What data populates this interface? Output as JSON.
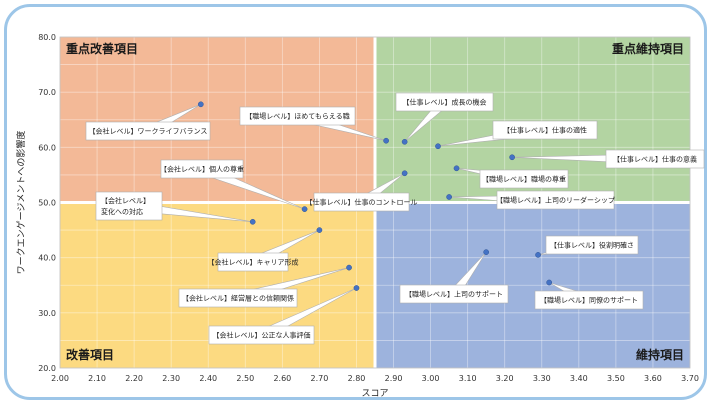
{
  "chart_data": {
    "type": "scatter",
    "xlabel": "スコア",
    "ylabel": "ワークエンゲージメントへの影響度",
    "xlim": [
      2.0,
      3.7
    ],
    "ylim": [
      20.0,
      80.0
    ],
    "x_ticks": [
      "2.00",
      "2.10",
      "2.20",
      "2.30",
      "2.40",
      "2.50",
      "2.60",
      "2.70",
      "2.80",
      "2.90",
      "3.00",
      "3.10",
      "3.20",
      "3.30",
      "3.40",
      "3.50",
      "3.60",
      "3.70"
    ],
    "y_ticks": [
      "20.0",
      "30.0",
      "40.0",
      "50.0",
      "60.0",
      "70.0",
      "80.0"
    ],
    "x_divider": 2.85,
    "y_divider": 50.0,
    "grid": true,
    "quadrants": [
      {
        "name": "重点改善項目",
        "position": "top-left",
        "color": "#f3b997"
      },
      {
        "name": "重点維持項目",
        "position": "top-right",
        "color": "#b3d4a2"
      },
      {
        "name": "改善項目",
        "position": "bottom-left",
        "color": "#fcda81"
      },
      {
        "name": "維持項目",
        "position": "bottom-right",
        "color": "#9db3dd"
      }
    ],
    "point_color": "#4472c4",
    "points": [
      {
        "label": "【会社レベル】ワークライフバランス",
        "x": 2.38,
        "y": 67.8
      },
      {
        "label": "【会社レベル】個人の尊重",
        "x": 2.66,
        "y": 48.8
      },
      {
        "label": "【会社レベル】変化への対応",
        "x": 2.52,
        "y": 46.5
      },
      {
        "label": "【会社レベル】キャリア形成",
        "x": 2.7,
        "y": 45.0
      },
      {
        "label": "【会社レベル】経営層との信頼関係",
        "x": 2.78,
        "y": 38.2
      },
      {
        "label": "【会社レベル】公正な人事評価",
        "x": 2.8,
        "y": 34.5
      },
      {
        "label": "【職場レベル】ほめてもらえる職",
        "x": 2.88,
        "y": 61.2
      },
      {
        "label": "【仕事レベル】成長の機会",
        "x": 2.93,
        "y": 61.0
      },
      {
        "label": "【仕事レベル】仕事の適性",
        "x": 3.02,
        "y": 60.2
      },
      {
        "label": "【仕事レベル】仕事のコントロール",
        "x": 2.93,
        "y": 55.3
      },
      {
        "label": "【職場レベル】上司のリーダーシップ",
        "x": 3.05,
        "y": 51.0
      },
      {
        "label": "【職場レベル】職場の尊重",
        "x": 3.07,
        "y": 56.2
      },
      {
        "label": "【仕事レベル】仕事の意義",
        "x": 3.22,
        "y": 58.2
      },
      {
        "label": "【職場レベル】上司のサポート",
        "x": 3.15,
        "y": 41.0
      },
      {
        "label": "【仕事レベル】役割明確さ",
        "x": 3.29,
        "y": 40.5
      },
      {
        "label": "【職場レベル】同僚のサポート",
        "x": 3.32,
        "y": 35.5
      }
    ]
  }
}
